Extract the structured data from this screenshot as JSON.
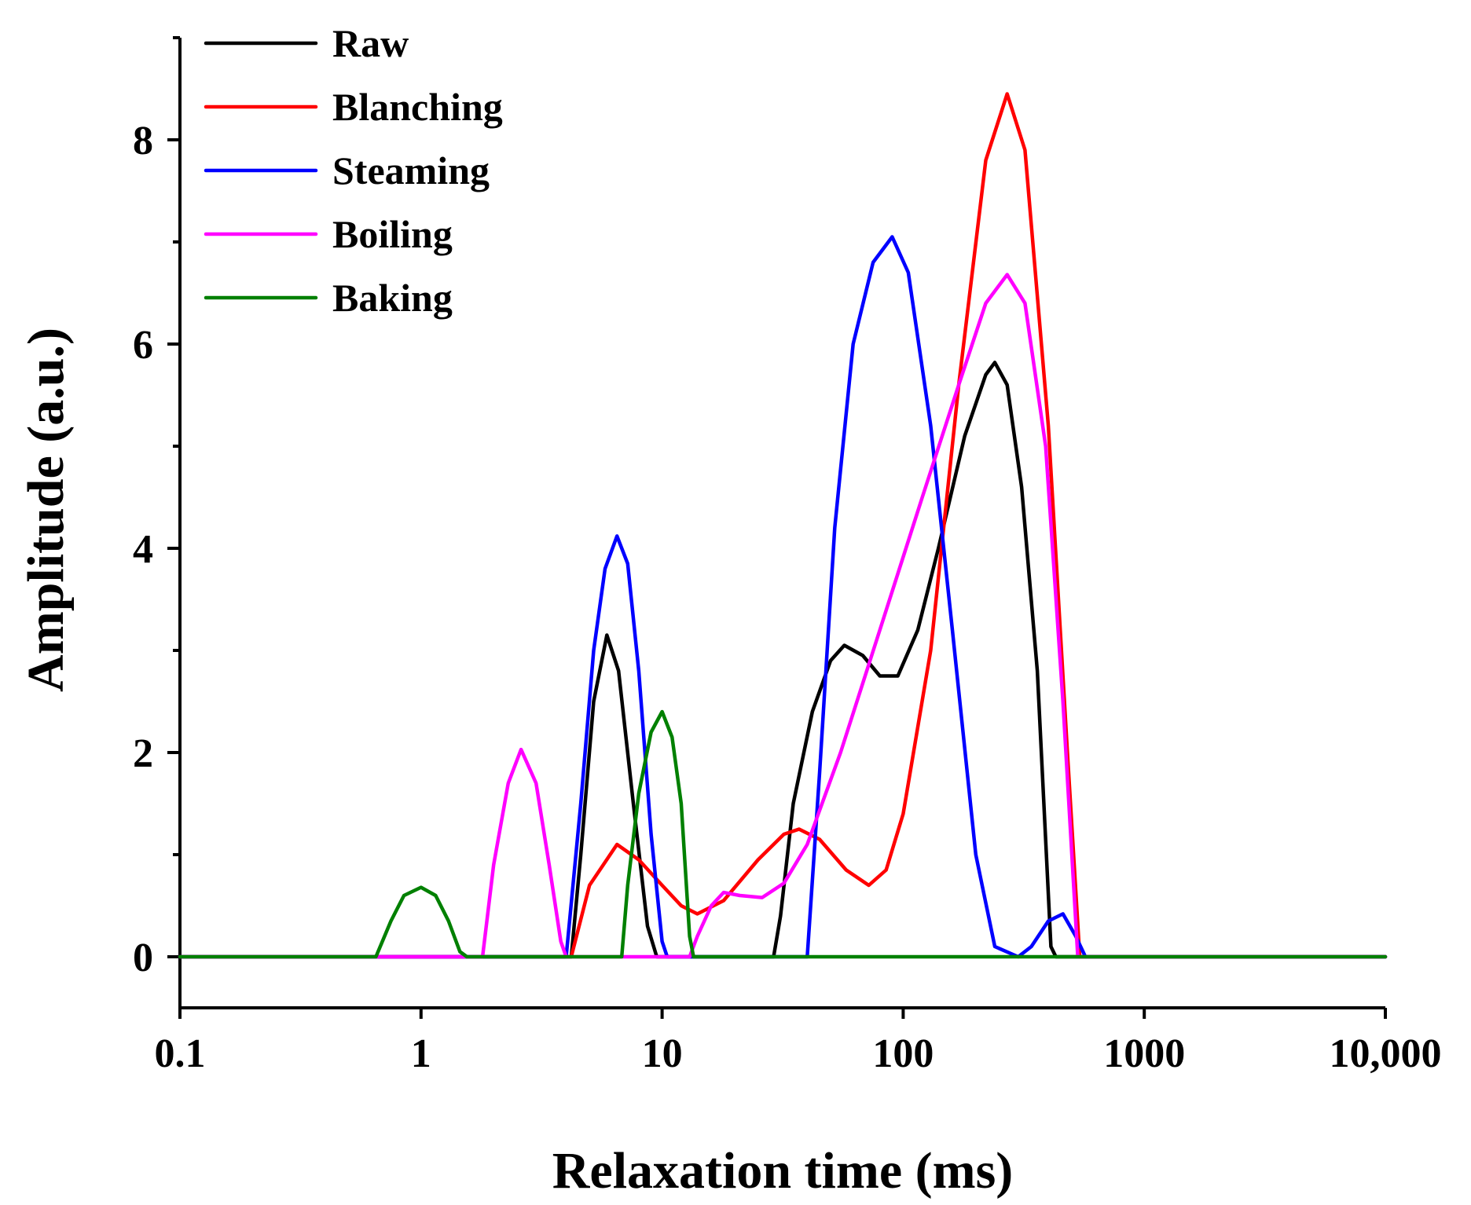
{
  "chart_data": {
    "type": "line",
    "xlabel": "Relaxation time (ms)",
    "ylabel": "Amplitude (a.u.)",
    "x_scale": "log",
    "xlim": [
      0.1,
      10000
    ],
    "ylim": [
      -0.5,
      9
    ],
    "x_ticks": [
      {
        "value": 0.1,
        "label": "0.1"
      },
      {
        "value": 1,
        "label": "1"
      },
      {
        "value": 10,
        "label": "10"
      },
      {
        "value": 100,
        "label": "100"
      },
      {
        "value": 1000,
        "label": "1000"
      },
      {
        "value": 10000,
        "label": "10,000"
      }
    ],
    "y_ticks": [
      {
        "value": 0,
        "label": "0"
      },
      {
        "value": 2,
        "label": "2"
      },
      {
        "value": 4,
        "label": "4"
      },
      {
        "value": 6,
        "label": "6"
      },
      {
        "value": 8,
        "label": "8"
      }
    ],
    "legend_position": "top-left",
    "grid": false,
    "series": [
      {
        "name": "Raw",
        "color": "#000000",
        "points": [
          [
            0.1,
            0
          ],
          [
            4.2,
            0
          ],
          [
            4.6,
            1.0
          ],
          [
            5.2,
            2.5
          ],
          [
            5.9,
            3.15
          ],
          [
            6.6,
            2.8
          ],
          [
            7.6,
            1.5
          ],
          [
            8.7,
            0.3
          ],
          [
            9.5,
            0
          ],
          [
            29,
            0
          ],
          [
            31,
            0.4
          ],
          [
            35,
            1.5
          ],
          [
            42,
            2.4
          ],
          [
            50,
            2.9
          ],
          [
            57,
            3.05
          ],
          [
            68,
            2.95
          ],
          [
            80,
            2.75
          ],
          [
            95,
            2.75
          ],
          [
            115,
            3.2
          ],
          [
            140,
            4.0
          ],
          [
            180,
            5.1
          ],
          [
            220,
            5.7
          ],
          [
            240,
            5.82
          ],
          [
            270,
            5.6
          ],
          [
            310,
            4.6
          ],
          [
            360,
            2.8
          ],
          [
            410,
            0.1
          ],
          [
            430,
            0
          ],
          [
            10000,
            0
          ]
        ]
      },
      {
        "name": "Blanching",
        "color": "#ff0000",
        "points": [
          [
            0.1,
            0
          ],
          [
            4.2,
            0
          ],
          [
            5.0,
            0.7
          ],
          [
            6.5,
            1.1
          ],
          [
            8.0,
            0.95
          ],
          [
            10,
            0.7
          ],
          [
            12,
            0.5
          ],
          [
            14,
            0.42
          ],
          [
            18,
            0.55
          ],
          [
            25,
            0.95
          ],
          [
            32,
            1.2
          ],
          [
            37,
            1.25
          ],
          [
            45,
            1.15
          ],
          [
            58,
            0.85
          ],
          [
            72,
            0.7
          ],
          [
            85,
            0.85
          ],
          [
            100,
            1.4
          ],
          [
            130,
            3.0
          ],
          [
            170,
            5.6
          ],
          [
            220,
            7.8
          ],
          [
            270,
            8.45
          ],
          [
            320,
            7.9
          ],
          [
            400,
            5.2
          ],
          [
            480,
            2.0
          ],
          [
            540,
            0
          ],
          [
            10000,
            0
          ]
        ]
      },
      {
        "name": "Steaming",
        "color": "#0000ff",
        "points": [
          [
            0.1,
            0
          ],
          [
            4.0,
            0
          ],
          [
            4.6,
            1.5
          ],
          [
            5.2,
            3.0
          ],
          [
            5.8,
            3.8
          ],
          [
            6.5,
            4.12
          ],
          [
            7.2,
            3.85
          ],
          [
            8.0,
            2.8
          ],
          [
            9.0,
            1.2
          ],
          [
            10,
            0.15
          ],
          [
            10.5,
            0
          ],
          [
            40,
            0
          ],
          [
            45,
            1.8
          ],
          [
            52,
            4.2
          ],
          [
            62,
            6.0
          ],
          [
            75,
            6.8
          ],
          [
            90,
            7.05
          ],
          [
            105,
            6.7
          ],
          [
            130,
            5.2
          ],
          [
            160,
            3.2
          ],
          [
            200,
            1.0
          ],
          [
            240,
            0.1
          ],
          [
            300,
            0
          ],
          [
            340,
            0.1
          ],
          [
            400,
            0.35
          ],
          [
            460,
            0.42
          ],
          [
            520,
            0.2
          ],
          [
            570,
            0
          ],
          [
            10000,
            0
          ]
        ]
      },
      {
        "name": "Boiling",
        "color": "#ff00ff",
        "points": [
          [
            0.1,
            0
          ],
          [
            1.8,
            0
          ],
          [
            2.0,
            0.9
          ],
          [
            2.3,
            1.7
          ],
          [
            2.6,
            2.03
          ],
          [
            3.0,
            1.7
          ],
          [
            3.4,
            0.9
          ],
          [
            3.8,
            0.15
          ],
          [
            4.0,
            0
          ],
          [
            7.5,
            0
          ],
          [
            13,
            0
          ],
          [
            14,
            0.2
          ],
          [
            16,
            0.5
          ],
          [
            18,
            0.63
          ],
          [
            21,
            0.6
          ],
          [
            26,
            0.58
          ],
          [
            32,
            0.72
          ],
          [
            40,
            1.1
          ],
          [
            55,
            2.0
          ],
          [
            80,
            3.2
          ],
          [
            120,
            4.5
          ],
          [
            170,
            5.6
          ],
          [
            220,
            6.4
          ],
          [
            270,
            6.68
          ],
          [
            320,
            6.4
          ],
          [
            390,
            5.0
          ],
          [
            460,
            2.5
          ],
          [
            530,
            0
          ],
          [
            10000,
            0
          ]
        ]
      },
      {
        "name": "Baking",
        "color": "#008000",
        "points": [
          [
            0.1,
            0
          ],
          [
            0.65,
            0
          ],
          [
            0.75,
            0.35
          ],
          [
            0.85,
            0.6
          ],
          [
            1.0,
            0.68
          ],
          [
            1.15,
            0.6
          ],
          [
            1.3,
            0.35
          ],
          [
            1.45,
            0.05
          ],
          [
            1.55,
            0
          ],
          [
            6.8,
            0
          ],
          [
            7.2,
            0.7
          ],
          [
            8.0,
            1.6
          ],
          [
            9.0,
            2.2
          ],
          [
            10,
            2.4
          ],
          [
            11,
            2.15
          ],
          [
            12,
            1.5
          ],
          [
            13,
            0.2
          ],
          [
            13.5,
            0
          ],
          [
            10000,
            0
          ]
        ]
      }
    ]
  }
}
